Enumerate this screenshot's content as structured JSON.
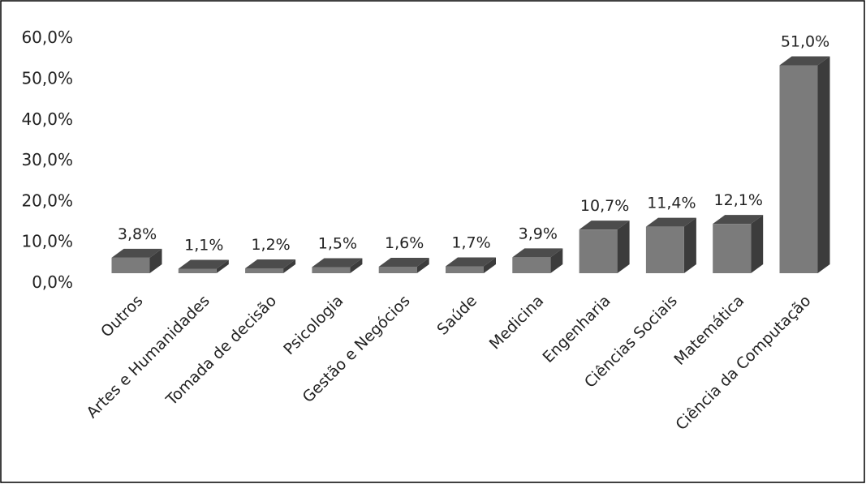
{
  "chart_data": {
    "type": "bar",
    "style": "3d-column",
    "categories": [
      "Outros",
      "Artes e Humanidades",
      "Tomada de decisão",
      "Psicologia",
      "Gestão e Negócios",
      "Saúde",
      "Medicina",
      "Engenharia",
      "Ciências Sociais",
      "Matemática",
      "Ciência da Computação"
    ],
    "values": [
      3.8,
      1.1,
      1.2,
      1.5,
      1.6,
      1.7,
      3.9,
      10.7,
      11.4,
      12.1,
      51.0
    ],
    "data_labels": [
      "3,8%",
      "1,1%",
      "1,2%",
      "1,5%",
      "1,6%",
      "1,7%",
      "3,9%",
      "10,7%",
      "11,4%",
      "12,1%",
      "51,0%"
    ],
    "y_ticks": [
      "0,0%",
      "10,0%",
      "20,0%",
      "30,0%",
      "40,0%",
      "50,0%",
      "60,0%"
    ],
    "ylim": [
      0,
      60
    ],
    "grid": false,
    "colors": {
      "front": "#7b7b7b",
      "side": "#3c3c3c",
      "top": "#4c4c4c"
    }
  }
}
